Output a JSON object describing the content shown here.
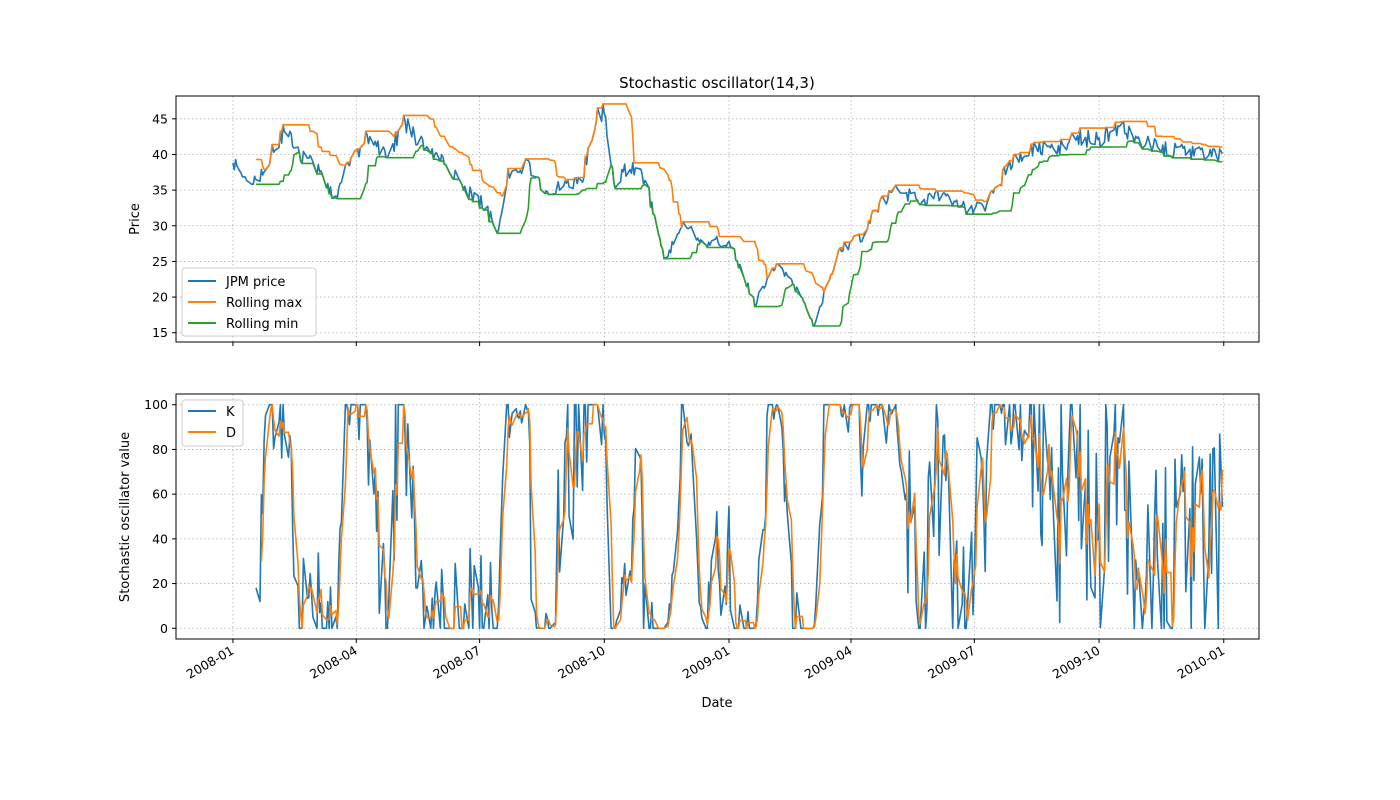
{
  "chart_data": {
    "type": "line",
    "title": "Stochastic oscillator(14,3)",
    "xlabel": "Date",
    "x_ticks": [
      "2008-01",
      "2008-04",
      "2008-07",
      "2008-10",
      "2009-01",
      "2009-04",
      "2009-07",
      "2009-10",
      "2010-01"
    ],
    "x_range": [
      "2007-11-20",
      "2010-01-27"
    ],
    "colors": {
      "blue": "#1f77b4",
      "orange": "#ff7f0e",
      "green": "#2ca02c"
    },
    "panels": [
      {
        "ylabel": "Price",
        "ylim": [
          13.7,
          48.2
        ],
        "y_ticks": [
          15,
          20,
          25,
          30,
          35,
          40,
          45
        ],
        "legend_position": "lower-left",
        "price_anchors": [
          [
            "2008-01-01",
            38.5
          ],
          [
            "2008-01-10",
            37.2
          ],
          [
            "2008-01-20",
            36.5
          ],
          [
            "2008-02-01",
            41.0
          ],
          [
            "2008-02-08",
            43.5
          ],
          [
            "2008-02-18",
            40.0
          ],
          [
            "2008-03-01",
            39.0
          ],
          [
            "2008-03-10",
            36.0
          ],
          [
            "2008-03-17",
            33.5
          ],
          [
            "2008-03-25",
            38.0
          ],
          [
            "2008-04-08",
            42.5
          ],
          [
            "2008-04-25",
            40.0
          ],
          [
            "2008-05-06",
            44.5
          ],
          [
            "2008-05-20",
            41.5
          ],
          [
            "2008-06-05",
            39.5
          ],
          [
            "2008-06-20",
            35.0
          ],
          [
            "2008-07-01",
            33.5
          ],
          [
            "2008-07-15",
            29.5
          ],
          [
            "2008-07-22",
            37.0
          ],
          [
            "2008-08-05",
            38.5
          ],
          [
            "2008-08-20",
            35.0
          ],
          [
            "2008-09-01",
            35.5
          ],
          [
            "2008-09-15",
            37.0
          ],
          [
            "2008-09-25",
            45.0
          ],
          [
            "2008-10-01",
            46.5
          ],
          [
            "2008-10-08",
            36.0
          ],
          [
            "2008-10-20",
            38.5
          ],
          [
            "2008-11-01",
            36.0
          ],
          [
            "2008-11-15",
            25.0
          ],
          [
            "2008-11-28",
            31.0
          ],
          [
            "2008-12-10",
            27.5
          ],
          [
            "2009-01-01",
            28.0
          ],
          [
            "2009-01-12",
            23.0
          ],
          [
            "2009-01-20",
            19.0
          ],
          [
            "2009-02-05",
            25.0
          ],
          [
            "2009-02-20",
            21.0
          ],
          [
            "2009-03-05",
            16.0
          ],
          [
            "2009-03-15",
            22.0
          ],
          [
            "2009-03-25",
            27.0
          ],
          [
            "2009-04-10",
            28.5
          ],
          [
            "2009-04-20",
            32.5
          ],
          [
            "2009-05-05",
            35.5
          ],
          [
            "2009-05-20",
            33.5
          ],
          [
            "2009-06-05",
            34.0
          ],
          [
            "2009-06-25",
            32.5
          ],
          [
            "2009-07-10",
            33.0
          ],
          [
            "2009-07-25",
            38.0
          ],
          [
            "2009-08-10",
            40.5
          ],
          [
            "2009-09-01",
            41.0
          ],
          [
            "2009-09-15",
            42.5
          ],
          [
            "2009-10-01",
            42.0
          ],
          [
            "2009-10-15",
            44.0
          ],
          [
            "2009-11-01",
            42.0
          ],
          [
            "2009-11-20",
            40.5
          ],
          [
            "2009-12-10",
            40.0
          ],
          [
            "2009-12-31",
            39.8
          ]
        ],
        "rolling_window": 14,
        "series": [
          {
            "name": "JPM price",
            "color": "#1f77b4"
          },
          {
            "name": "Rolling max",
            "color": "#ff7f0e"
          },
          {
            "name": "Rolling min",
            "color": "#2ca02c"
          }
        ]
      },
      {
        "ylabel": "Stochastic oscillator value",
        "ylim": [
          -4.8,
          104.8
        ],
        "y_ticks": [
          0,
          20,
          40,
          60,
          80,
          100
        ],
        "legend_position": "top-left",
        "smoothing": 3,
        "series": [
          {
            "name": "K",
            "color": "#1f77b4"
          },
          {
            "name": "D",
            "color": "#ff7f0e"
          }
        ]
      }
    ]
  }
}
